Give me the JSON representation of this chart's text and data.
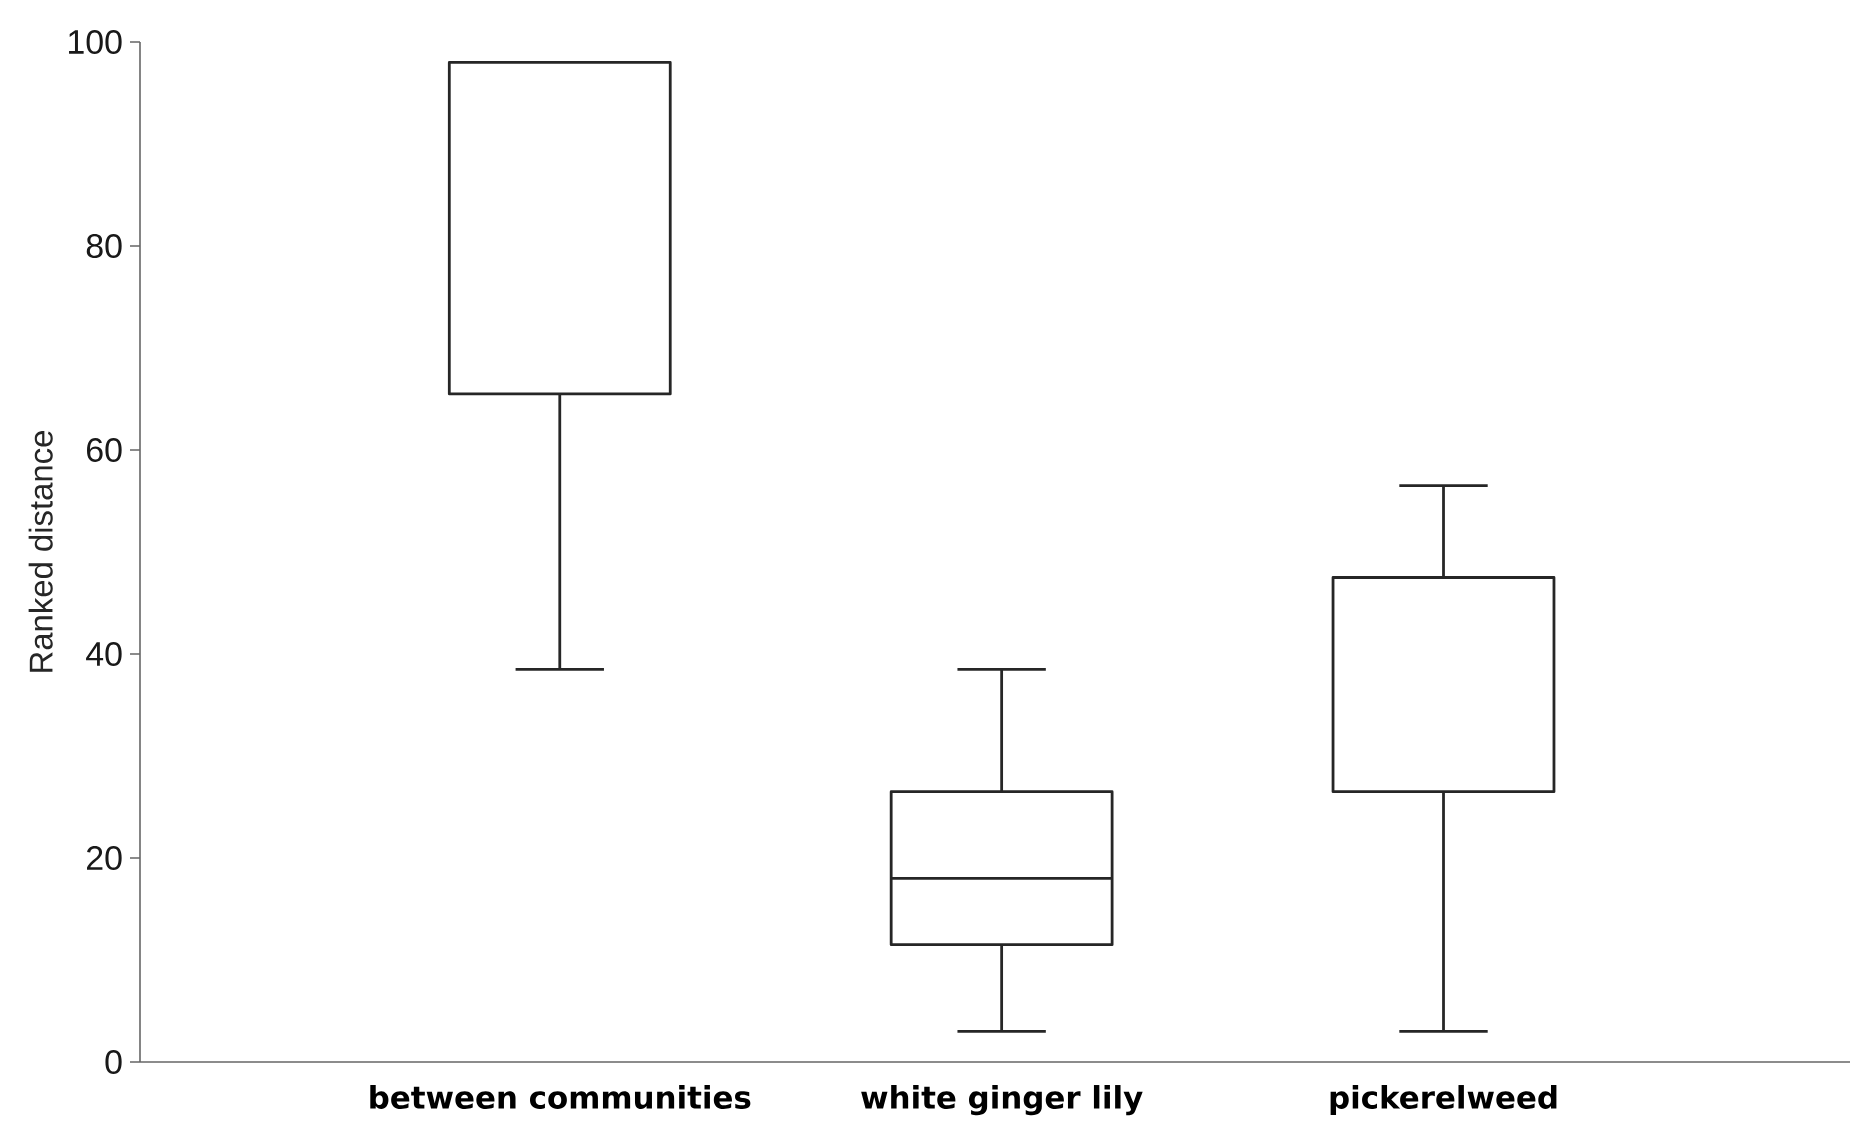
{
  "chart_data": {
    "type": "box",
    "ylabel": "Ranked distance",
    "categories": [
      "between communities",
      "white ginger lily",
      "pickerelweed"
    ],
    "boxes": [
      {
        "low": 38.5,
        "q1": 65.5,
        "median": 98,
        "q3": 98,
        "high": 98
      },
      {
        "low": 3,
        "q1": 11.5,
        "median": 18,
        "q3": 26.5,
        "high": 38.5
      },
      {
        "low": 3,
        "q1": 26.5,
        "median": 26.5,
        "q3": 47.5,
        "high": 56.5
      }
    ],
    "ylim": [
      0,
      100
    ],
    "yticks": [
      0,
      20,
      40,
      60,
      80,
      100
    ]
  }
}
